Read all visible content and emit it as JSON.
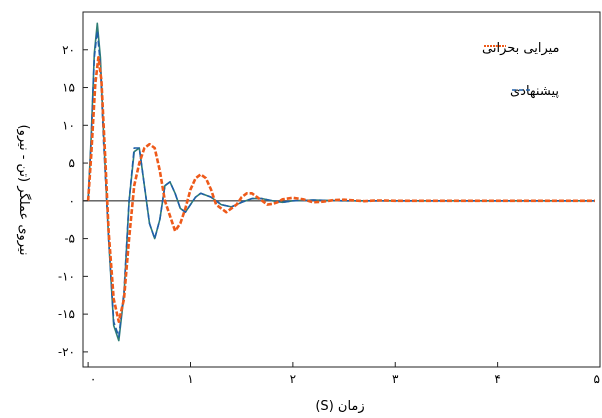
{
  "chart_data": {
    "type": "line",
    "xlabel": "زمان (S)",
    "ylabel": "نیروی عملگر (تن - نیرو)",
    "xlim": [
      -0.05,
      5.0
    ],
    "ylim": [
      -22,
      25
    ],
    "x_ticks": [
      0,
      1,
      2,
      3,
      4,
      5
    ],
    "x_tick_labels": [
      "۰",
      "۱",
      "۲",
      "۳",
      "۴",
      "۵"
    ],
    "y_ticks": [
      20,
      15,
      10,
      5,
      0,
      -5,
      -10,
      -15,
      -20
    ],
    "y_tick_labels": [
      "۲۰",
      "۱۵",
      "۱۰",
      "۵",
      "۰",
      "-۵",
      "-۱۰",
      "-۱۵",
      "-۲۰"
    ],
    "grid": false,
    "legend_position": "top-right",
    "series": [
      {
        "name": "میرایی بحرانی",
        "color": "#ee5a1a",
        "style": "dashed",
        "x": [
          0.0,
          0.03,
          0.07,
          0.1,
          0.13,
          0.17,
          0.2,
          0.25,
          0.3,
          0.35,
          0.4,
          0.45,
          0.5,
          0.55,
          0.6,
          0.65,
          0.7,
          0.75,
          0.8,
          0.85,
          0.9,
          0.95,
          1.0,
          1.05,
          1.1,
          1.15,
          1.2,
          1.25,
          1.3,
          1.35,
          1.4,
          1.45,
          1.5,
          1.55,
          1.6,
          1.65,
          1.7,
          1.75,
          1.8,
          1.85,
          1.9,
          2.0,
          2.1,
          2.2,
          2.3,
          2.4,
          2.5,
          2.6,
          2.7,
          2.8,
          2.9,
          3.0,
          3.5,
          4.0,
          4.5,
          4.95
        ],
        "y": [
          0.0,
          6.0,
          15.5,
          19.0,
          16.0,
          5.0,
          -4.0,
          -13.0,
          -16.0,
          -13.0,
          -5.0,
          2.0,
          5.0,
          7.0,
          7.5,
          7.0,
          4.0,
          0.0,
          -2.0,
          -4.0,
          -3.0,
          -1.0,
          1.5,
          3.0,
          3.5,
          3.0,
          1.5,
          -0.5,
          -1.0,
          -1.5,
          -1.0,
          -0.5,
          0.5,
          1.0,
          1.0,
          0.5,
          0.0,
          -0.5,
          -0.4,
          -0.2,
          0.2,
          0.4,
          0.2,
          -0.2,
          -0.1,
          0.1,
          0.15,
          0.05,
          -0.05,
          0.05,
          0.05,
          0.0,
          0.0,
          0.0,
          0.0,
          0.0
        ]
      },
      {
        "name": "پیشنهادی",
        "color": "#1f5fa8",
        "style": "dashed",
        "x": [
          0.0,
          0.03,
          0.06,
          0.09,
          0.12,
          0.15,
          0.2,
          0.25,
          0.3,
          0.35,
          0.4,
          0.45,
          0.5,
          0.55,
          0.6,
          0.65,
          0.7,
          0.75,
          0.8,
          0.85,
          0.9,
          0.95,
          1.0,
          1.05,
          1.1,
          1.2,
          1.3,
          1.4,
          1.5,
          1.6,
          1.7,
          1.8,
          1.9,
          2.0,
          2.2,
          2.5,
          3.0,
          3.5,
          4.0,
          4.5,
          4.95
        ],
        "y": [
          0.0,
          8.0,
          19.0,
          22.5,
          18.0,
          8.0,
          -5.0,
          -16.0,
          -18.0,
          -12.0,
          0.0,
          7.0,
          7.0,
          2.0,
          -3.0,
          -5.0,
          -2.5,
          2.0,
          2.5,
          1.0,
          -1.0,
          -1.5,
          -0.5,
          0.5,
          1.0,
          0.5,
          -0.5,
          -0.8,
          -0.2,
          0.3,
          0.3,
          0.0,
          -0.2,
          0.0,
          0.1,
          0.0,
          0.0,
          0.0,
          0.0,
          0.0,
          0.0
        ]
      },
      {
        "name": "",
        "color": "#2e7d74",
        "style": "solid",
        "x": [
          0.0,
          0.03,
          0.06,
          0.09,
          0.12,
          0.15,
          0.2,
          0.25,
          0.3,
          0.35,
          0.4,
          0.45,
          0.5,
          0.55,
          0.6,
          0.65,
          0.7,
          0.75,
          0.8,
          0.85,
          0.9,
          0.95,
          1.0,
          1.05,
          1.1,
          1.2,
          1.3,
          1.4,
          1.5,
          1.6,
          1.7,
          1.8,
          1.9,
          2.0,
          2.2,
          2.5,
          3.0,
          3.5,
          4.0,
          4.5,
          4.95
        ],
        "y": [
          0.0,
          8.5,
          19.5,
          23.5,
          19.0,
          9.0,
          -5.0,
          -16.5,
          -18.5,
          -12.5,
          0.0,
          6.5,
          7.0,
          2.0,
          -3.0,
          -5.0,
          -2.5,
          2.0,
          2.5,
          1.0,
          -1.0,
          -1.5,
          -0.5,
          0.5,
          1.0,
          0.5,
          -0.5,
          -0.8,
          -0.2,
          0.3,
          0.3,
          0.0,
          -0.2,
          0.0,
          0.1,
          0.0,
          0.0,
          0.0,
          0.0,
          0.0,
          0.0
        ]
      },
      {
        "name": "",
        "color": "#555555",
        "style": "solid",
        "x": [
          -0.05,
          4.95
        ],
        "y": [
          0.0,
          0.0
        ]
      }
    ]
  }
}
